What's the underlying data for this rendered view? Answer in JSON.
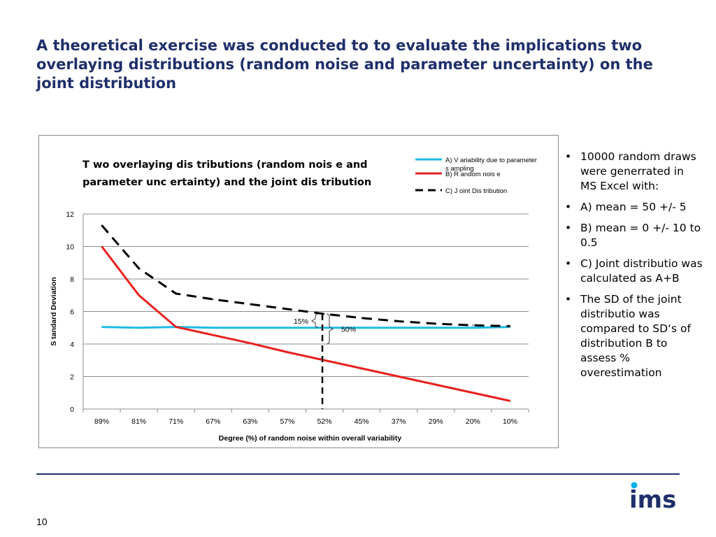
{
  "slide": {
    "title": "A theoretical exercise was conducted to to evaluate the implications two overlaying distributions (random noise and parameter uncertainty) on the joint distribution",
    "bullets": [
      "10000 random draws were generrated in MS Excel with:",
      "A) mean = 50 +/- 5",
      "B) mean = 0 +/- 10 to 0.5",
      "C) Joint distributio was calculated as A+B",
      "The SD of the joint distributio was compared to SD‘s of distribution B to assess % overestimation"
    ],
    "page_number": "10",
    "logo_text": "ims",
    "colors": {
      "title": "#1f2f6b",
      "rule": "#1f2f6b",
      "logo": "#1f2f6b",
      "logo_dot": "#00b0e8"
    }
  },
  "chart_data": {
    "type": "line",
    "title_lines": [
      "T wo overlaying dis tributions  (random nois e and",
      "parameter unc ertainty) and the joint dis tribution"
    ],
    "xlabel": "Degree (%) of random noise within overall variability",
    "ylabel": "S tandard Deviation",
    "categories": [
      "89%",
      "81%",
      "71%",
      "67%",
      "63%",
      "57%",
      "52%",
      "45%",
      "37%",
      "29%",
      "20%",
      "10%"
    ],
    "ylim": [
      0,
      12
    ],
    "yticks": [
      0,
      2,
      4,
      6,
      8,
      10,
      12
    ],
    "grid": true,
    "legend_position": "top-right",
    "series": [
      {
        "name": "A) V ariability due to parameter s ampling",
        "legend_lines": [
          "A) V ariability due to parameter",
          "s ampling"
        ],
        "color": "#1ebbe6",
        "dash": "solid",
        "values": [
          5.05,
          5.0,
          5.05,
          5.0,
          5.0,
          5.0,
          5.0,
          5.0,
          5.0,
          5.0,
          5.0,
          5.05
        ]
      },
      {
        "name": "B) R andom nois e",
        "legend_lines": [
          "B) R andom nois e"
        ],
        "color": "#e8201c",
        "dash": "solid",
        "values": [
          10.0,
          7.0,
          5.05,
          4.55,
          4.05,
          3.5,
          3.0,
          2.5,
          2.0,
          1.5,
          1.0,
          0.5
        ]
      },
      {
        "name": "C) J oint Dis tribution",
        "legend_lines": [
          "C) J oint Dis tribution"
        ],
        "color": "#000000",
        "dash": "dashed",
        "values": [
          11.3,
          8.65,
          7.1,
          6.75,
          6.45,
          6.15,
          5.85,
          5.6,
          5.4,
          5.25,
          5.15,
          5.1
        ]
      }
    ],
    "annotations": {
      "vertical_marker_category": "52%",
      "label_15": "15%",
      "label_50": "50%"
    }
  }
}
